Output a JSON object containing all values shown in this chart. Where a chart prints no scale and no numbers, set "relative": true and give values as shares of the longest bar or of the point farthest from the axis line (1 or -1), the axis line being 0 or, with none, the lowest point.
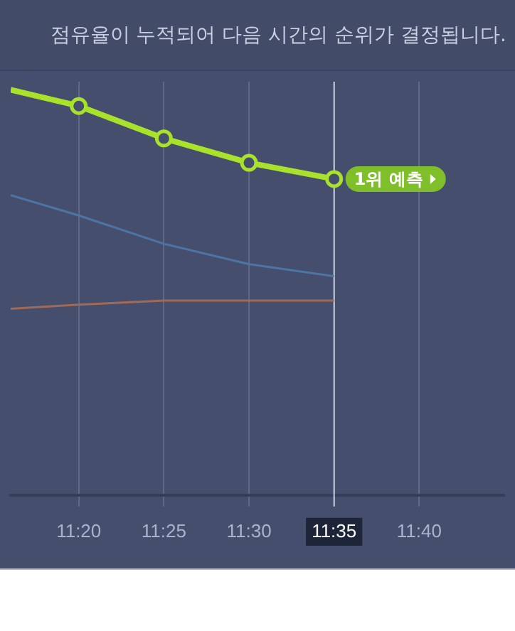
{
  "chart_data": {
    "type": "line",
    "title": "점유율이 누적되어 다음 시간의 순위가 결정됩니다.",
    "relative": true,
    "x": [
      11.266667,
      11.333333,
      11.416667,
      11.5,
      11.583333
    ],
    "xlim": [
      11.266667,
      11.75
    ],
    "xticks": [
      {
        "value": 11.333333,
        "label": "11:20"
      },
      {
        "value": 11.416667,
        "label": "11:25"
      },
      {
        "value": 11.5,
        "label": "11:30"
      },
      {
        "value": 11.583333,
        "label": "11:35"
      },
      {
        "value": 11.666667,
        "label": "11:40"
      }
    ],
    "series": [
      {
        "color": "#a8e22a",
        "values": [
          1,
          0.96,
          0.88,
          0.82,
          0.78
        ],
        "marker": "circle"
      },
      {
        "color": "#4d75a3",
        "values": [
          0.74,
          0.69,
          0.62,
          0.57,
          0.54
        ],
        "marker": "none"
      },
      {
        "color": "#a06a58",
        "values": [
          0.46,
          0.47,
          0.48,
          0.48,
          0.48
        ],
        "marker": "none"
      }
    ],
    "ref_lines": [
      {
        "axis": "x",
        "value": 11.583333,
        "color": "#c9cfe0"
      }
    ],
    "annotations": [
      {
        "text": "1위 예측",
        "x": 11.583333,
        "y": 0.78
      }
    ],
    "grid": "x",
    "legend": false
  }
}
